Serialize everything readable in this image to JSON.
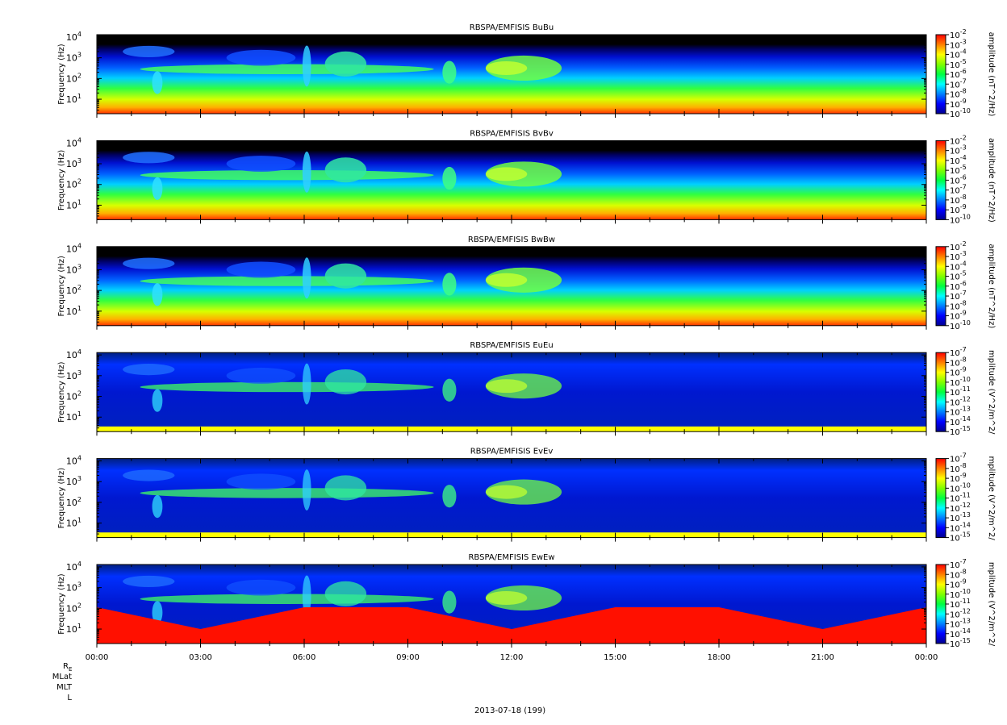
{
  "chart_data": {
    "type": "heatmap",
    "x_ticks": [
      "00:00",
      "03:00",
      "06:00",
      "09:00",
      "12:00",
      "15:00",
      "18:00",
      "21:00",
      "00:00"
    ],
    "xlim": [
      "00:00",
      "24:00"
    ],
    "y_scale": "log",
    "ylim": [
      2,
      13000
    ],
    "y_tick_exponents": [
      "4",
      "3",
      "2",
      "1"
    ],
    "panels": [
      {
        "title": "RBSPA/EMFISIS  BuBu",
        "ylabel": "Frequency (Hz)",
        "colorbar_label": "amplitude (nT^2/Hz)",
        "colorbar_exponents": [
          "-2",
          "-3",
          "-4",
          "-5",
          "-6",
          "-7",
          "-8",
          "-9",
          "-10"
        ]
      },
      {
        "title": "RBSPA/EMFISIS  BvBv",
        "ylabel": "Frequency (Hz)",
        "colorbar_label": "amplitude (nT^2/Hz)",
        "colorbar_exponents": [
          "-2",
          "-3",
          "-4",
          "-5",
          "-6",
          "-7",
          "-8",
          "-9",
          "-10"
        ]
      },
      {
        "title": "RBSPA/EMFISIS  BwBw",
        "ylabel": "Frequency (Hz)",
        "colorbar_label": "amplitude (nT^2/Hz)",
        "colorbar_exponents": [
          "-2",
          "-3",
          "-4",
          "-5",
          "-6",
          "-7",
          "-8",
          "-9",
          "-10"
        ]
      },
      {
        "title": "RBSPA/EMFISIS  EuEu",
        "ylabel": "Frequency (Hz)",
        "colorbar_label": "mplitude (V^2/m^2/",
        "colorbar_exponents": [
          "-7",
          "-8",
          "-9",
          "-10",
          "-11",
          "-12",
          "-13",
          "-14",
          "-15"
        ]
      },
      {
        "title": "RBSPA/EMFISIS  EvEv",
        "ylabel": "Frequency (Hz)",
        "colorbar_label": "mplitude (V^2/m^2/",
        "colorbar_exponents": [
          "-7",
          "-8",
          "-9",
          "-10",
          "-11",
          "-12",
          "-13",
          "-14",
          "-15"
        ]
      },
      {
        "title": "RBSPA/EMFISIS  EwEw",
        "ylabel": "Frequency (Hz)",
        "colorbar_label": "mplitude (V^2/m^2/",
        "colorbar_exponents": [
          "-7",
          "-8",
          "-9",
          "-10",
          "-11",
          "-12",
          "-13",
          "-14",
          "-15"
        ]
      }
    ],
    "ephemeris_labels": [
      "R",
      "MLat",
      "MLT",
      "L"
    ],
    "ephemeris_subscript": "E",
    "date_label": "2013-07-18 (199)"
  },
  "colors": {
    "scale": [
      "#00008f",
      "#0000ff",
      "#0080ff",
      "#00ffff",
      "#00ff40",
      "#80ff00",
      "#ffff00",
      "#ff8000",
      "#ff0000"
    ],
    "background": "#000000"
  }
}
